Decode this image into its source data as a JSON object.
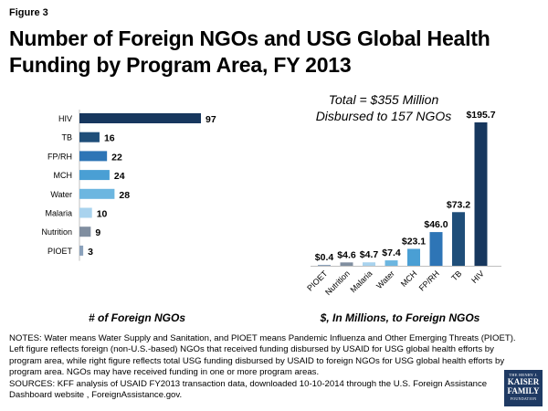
{
  "header": {
    "figure_label": "Figure 3",
    "title": "Number of Foreign NGOs and USG Global Health Funding by Program Area, FY 2013"
  },
  "annotation": {
    "total_line1": "Total = $355 Million",
    "total_line2": "Disbursed to 157 NGOs"
  },
  "chart_data": [
    {
      "type": "bar",
      "orientation": "horizontal",
      "categories": [
        "HIV",
        "TB",
        "FP/RH",
        "MCH",
        "Water",
        "Malaria",
        "Nutrition",
        "PIOET"
      ],
      "values": [
        97,
        16,
        22,
        24,
        28,
        10,
        9,
        3
      ],
      "labels": [
        "97",
        "16",
        "22",
        "24",
        "28",
        "10",
        "9",
        "3"
      ],
      "colors": [
        "#17375e",
        "#1f4e79",
        "#2e75b6",
        "#4a9fd4",
        "#6cb6e0",
        "#a9d3ee",
        "#808ea0",
        "#8aa1bb"
      ],
      "xlabel": "# of Foreign NGOs",
      "ylabel": "",
      "xlim": [
        0,
        97
      ]
    },
    {
      "type": "bar",
      "orientation": "vertical",
      "categories": [
        "PIOET",
        "Nutrition",
        "Malaria",
        "Water",
        "MCH",
        "FP/RH",
        "TB",
        "HIV"
      ],
      "values": [
        0.4,
        4.6,
        4.7,
        7.4,
        23.1,
        46.0,
        73.2,
        195.7
      ],
      "labels": [
        "$0.4",
        "$4.6",
        "$4.7",
        "$7.4",
        "$23.1",
        "$46.0",
        "$73.2",
        "$195.7"
      ],
      "colors": [
        "#8aa1bb",
        "#808ea0",
        "#a9d3ee",
        "#6cb6e0",
        "#4a9fd4",
        "#2e75b6",
        "#1f4e79",
        "#17375e"
      ],
      "xlabel": "$, In Millions, to Foreign NGOs",
      "ylabel": "",
      "ylim": [
        0,
        195.7
      ]
    }
  ],
  "notes": {
    "line1": "NOTES: Water means Water Supply and Sanitation, and PIOET means Pandemic Influenza and Other Emerging Threats (PIOET). Left figure reflects foreign (non-U.S.-based) NGOs that received funding disbursed by USAID for USG global health efforts by program area, while right figure reflects total USG funding disbursed by USAID to foreign NGOs for USG global health efforts by program area. NGOs may have received funding in one or more program areas.",
    "line2": "SOURCES: KFF analysis of USAID FY2013 transaction data, downloaded 10-10-2014 through the U.S. Foreign Assistance Dashboard website , ForeignAssistance.gov."
  },
  "logo": {
    "line1": "THE HENRY J.",
    "line2a": "KAISER",
    "line2b": "FAMILY",
    "line3": "FOUNDATION"
  }
}
